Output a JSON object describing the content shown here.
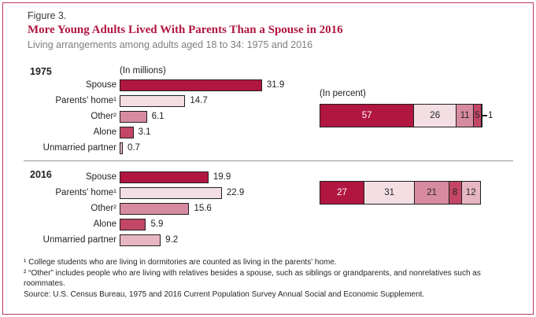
{
  "header": {
    "figure_label": "Figure 3.",
    "title": "More Young Adults Lived With Parents Than a Spouse in 2016",
    "subtitle": "Living arrangements among adults aged 18 to 34: 1975 and 2016"
  },
  "colors": {
    "accent": "#b11641",
    "frame_border": "#bd3a5e",
    "divider": "#9a9a9a",
    "series": [
      "#b11641",
      "#f3dee4",
      "#d78ba0",
      "#c34765",
      "#e7b6c3"
    ]
  },
  "chart_data": [
    {
      "type": "bar",
      "year": "1975",
      "units_label": "(In millions)",
      "percent_label": "(In percent)",
      "categories": [
        "Spouse",
        "Parents' home¹",
        "Other²",
        "Alone",
        "Unmarried partner"
      ],
      "values_millions": [
        31.9,
        14.7,
        6.1,
        3.1,
        0.7
      ],
      "percents": [
        57,
        26,
        11,
        5,
        1
      ],
      "xlim_millions": [
        0,
        35
      ],
      "percent_total": 100,
      "grid": false,
      "legend": "none"
    },
    {
      "type": "bar",
      "year": "2016",
      "categories": [
        "Spouse",
        "Parents' home¹",
        "Other²",
        "Alone",
        "Unmarried partner"
      ],
      "values_millions": [
        19.9,
        22.9,
        15.6,
        5.9,
        9.2
      ],
      "percents": [
        27,
        31,
        21,
        8,
        12
      ],
      "xlim_millions": [
        0,
        35
      ],
      "percent_total": 99,
      "grid": false,
      "legend": "none"
    }
  ],
  "footnotes": [
    "¹ College students who are living in dormitories are counted as living in the parents' home.",
    "² “Other” includes people who are living with relatives besides a spouse, such as siblings or grandparents, and nonrelatives such as roommates."
  ],
  "source": "Source: U.S. Census Bureau, 1975 and 2016 Current Population Survey Annual Social and Economic Supplement."
}
